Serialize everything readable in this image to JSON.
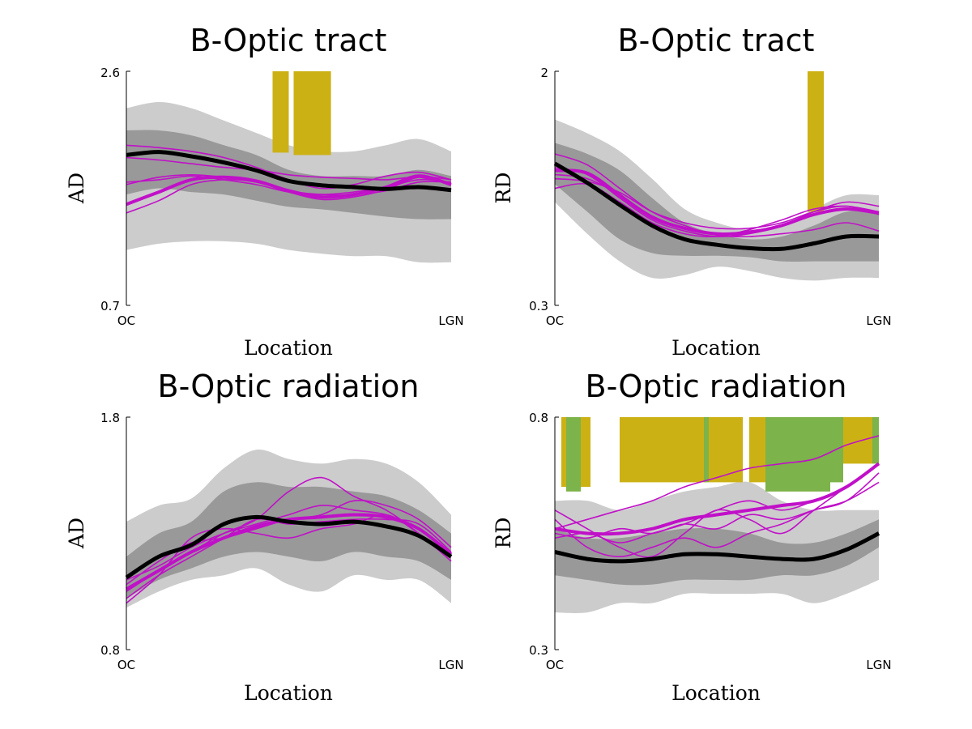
{
  "chart_data": [
    {
      "type": "line",
      "title": "B-Optic tract",
      "xlabel": "Location",
      "ylabel": "AD",
      "ylim": [
        0.7,
        2.6
      ],
      "y_tick_labels": [
        "0.7",
        "2.6"
      ],
      "x_tick_labels": [
        "OC",
        "LGN"
      ],
      "x": [
        0,
        10,
        20,
        30,
        40,
        50,
        60,
        70,
        80,
        90,
        100
      ],
      "band_outer": {
        "upper": [
          2.3,
          2.35,
          2.3,
          2.2,
          2.1,
          2.0,
          1.95,
          1.95,
          2.0,
          2.05,
          1.95
        ],
        "lower": [
          1.15,
          1.2,
          1.22,
          1.22,
          1.2,
          1.15,
          1.12,
          1.1,
          1.1,
          1.05,
          1.05
        ]
      },
      "band_inner": {
        "upper": [
          2.12,
          2.12,
          2.08,
          2.0,
          1.92,
          1.8,
          1.75,
          1.75,
          1.75,
          1.8,
          1.75
        ],
        "lower": [
          1.6,
          1.65,
          1.62,
          1.6,
          1.55,
          1.5,
          1.48,
          1.45,
          1.42,
          1.4,
          1.4
        ]
      },
      "series": [
        {
          "values": [
            1.9,
            1.88,
            1.85,
            1.82,
            1.8,
            1.76,
            1.74,
            1.73,
            1.72,
            1.74,
            1.68
          ]
        },
        {
          "values": [
            1.68,
            1.74,
            1.76,
            1.74,
            1.7,
            1.63,
            1.6,
            1.6,
            1.63,
            1.7,
            1.7
          ]
        },
        {
          "values": [
            1.7,
            1.72,
            1.75,
            1.72,
            1.68,
            1.62,
            1.6,
            1.62,
            1.66,
            1.72,
            1.7
          ]
        },
        {
          "values": [
            2.0,
            1.98,
            1.95,
            1.9,
            1.82,
            1.72,
            1.65,
            1.68,
            1.75,
            1.78,
            1.72
          ]
        },
        {
          "values": [
            1.45,
            1.55,
            1.68,
            1.72,
            1.7,
            1.62,
            1.56,
            1.58,
            1.64,
            1.74,
            1.72
          ]
        },
        {
          "values": [
            1.52,
            1.62,
            1.72,
            1.74,
            1.71,
            1.63,
            1.58,
            1.6,
            1.66,
            1.75,
            1.68
          ]
        }
      ],
      "significance": [
        {
          "x0": 45,
          "x1": 50,
          "y0": 1.94,
          "y1": 2.6,
          "color": "#ccb114"
        },
        {
          "x0": 51.5,
          "x1": 63,
          "y0": 1.92,
          "y1": 2.6,
          "color": "#ccb114"
        }
      ],
      "colors": {
        "band_outer": "#cccccc",
        "band_inner": "#999999",
        "mean": "#000000",
        "subject": "#c010c8",
        "sig_yellow": "#ccb114",
        "sig_green": "#7cb34a"
      }
    },
    {
      "type": "line",
      "title": "B-Optic tract",
      "xlabel": "Location",
      "ylabel": "RD",
      "ylim": [
        0.3,
        2
      ],
      "y_tick_labels": [
        "0.3",
        "2"
      ],
      "x_tick_labels": [
        "OC",
        "LGN"
      ],
      "x": [
        0,
        10,
        20,
        30,
        40,
        50,
        60,
        70,
        80,
        90,
        100
      ],
      "band_outer": {
        "upper": [
          1.65,
          1.55,
          1.42,
          1.22,
          1.0,
          0.9,
          0.85,
          0.88,
          1.0,
          1.1,
          1.1
        ],
        "lower": [
          1.05,
          0.82,
          0.62,
          0.5,
          0.52,
          0.58,
          0.55,
          0.5,
          0.48,
          0.5,
          0.5
        ]
      },
      "band_inner": {
        "upper": [
          1.48,
          1.4,
          1.28,
          1.08,
          0.9,
          0.82,
          0.78,
          0.8,
          0.88,
          0.98,
          0.98
        ],
        "lower": [
          1.18,
          0.98,
          0.78,
          0.68,
          0.66,
          0.66,
          0.65,
          0.62,
          0.62,
          0.62,
          0.62
        ]
      },
      "series": [
        {
          "values": [
            1.4,
            1.32,
            1.15,
            0.98,
            0.88,
            0.81,
            0.8,
            0.82,
            0.85,
            0.9,
            0.84
          ]
        },
        {
          "values": [
            1.25,
            1.22,
            1.1,
            0.95,
            0.86,
            0.82,
            0.84,
            0.88,
            0.96,
            1.0,
            0.98
          ]
        },
        {
          "values": [
            1.3,
            1.25,
            1.08,
            0.92,
            0.84,
            0.8,
            0.82,
            0.88,
            0.98,
            1.05,
            1.02
          ]
        },
        {
          "values": [
            1.22,
            1.2,
            1.12,
            0.98,
            0.9,
            0.86,
            0.86,
            0.9,
            0.98,
            1.02,
            0.96
          ]
        },
        {
          "values": [
            1.15,
            1.18,
            1.05,
            0.9,
            0.82,
            0.8,
            0.85,
            0.92,
            1.0,
            1.02,
            0.98
          ]
        },
        {
          "values": [
            1.28,
            1.26,
            1.1,
            0.94,
            0.86,
            0.82,
            0.83,
            0.88,
            0.96,
            1.0,
            0.97
          ]
        }
      ],
      "significance": [
        {
          "x0": 78,
          "x1": 83,
          "y0": 0.98,
          "y1": 2.0,
          "color": "#ccb114"
        }
      ],
      "colors": {
        "band_outer": "#cccccc",
        "band_inner": "#999999",
        "mean": "#000000",
        "subject": "#c010c8",
        "sig_yellow": "#ccb114",
        "sig_green": "#7cb34a"
      }
    },
    {
      "type": "line",
      "title": "B-Optic radiation",
      "xlabel": "Location",
      "ylabel": "AD",
      "ylim": [
        0.8,
        1.8
      ],
      "y_tick_labels": [
        "0.8",
        "1.8"
      ],
      "x_tick_labels": [
        "OC",
        "LGN"
      ],
      "x": [
        0,
        10,
        20,
        30,
        40,
        50,
        60,
        70,
        80,
        90,
        100
      ],
      "band_outer": {
        "upper": [
          1.35,
          1.42,
          1.45,
          1.58,
          1.66,
          1.62,
          1.6,
          1.62,
          1.6,
          1.52,
          1.38
        ],
        "lower": [
          0.98,
          1.05,
          1.1,
          1.12,
          1.15,
          1.08,
          1.05,
          1.12,
          1.1,
          1.1,
          1.0
        ]
      },
      "band_inner": {
        "upper": [
          1.2,
          1.3,
          1.35,
          1.48,
          1.52,
          1.5,
          1.5,
          1.48,
          1.46,
          1.4,
          1.3
        ]
      },
      "band_inner_lower": [
        1.02,
        1.1,
        1.15,
        1.2,
        1.22,
        1.2,
        1.18,
        1.22,
        1.2,
        1.18,
        1.1
      ],
      "series": [
        {
          "values": [
            1.02,
            1.12,
            1.2,
            1.28,
            1.36,
            1.34,
            1.35,
            1.36,
            1.36,
            1.34,
            1.22
          ]
        },
        {
          "values": [
            1.1,
            1.16,
            1.24,
            1.3,
            1.34,
            1.38,
            1.42,
            1.4,
            1.38,
            1.32,
            1.2
          ]
        },
        {
          "values": [
            1.05,
            1.14,
            1.22,
            1.3,
            1.36,
            1.48,
            1.54,
            1.46,
            1.4,
            1.3,
            1.18
          ]
        },
        {
          "values": [
            1.08,
            1.18,
            1.26,
            1.28,
            1.32,
            1.36,
            1.38,
            1.44,
            1.42,
            1.36,
            1.24
          ]
        },
        {
          "values": [
            1.0,
            1.12,
            1.28,
            1.32,
            1.3,
            1.28,
            1.32,
            1.34,
            1.38,
            1.3,
            1.2
          ]
        },
        {
          "values": [
            1.06,
            1.14,
            1.22,
            1.28,
            1.33,
            1.36,
            1.37,
            1.38,
            1.37,
            1.32,
            1.21
          ]
        }
      ],
      "significance": [],
      "colors": {
        "band_outer": "#cccccc",
        "band_inner": "#999999",
        "mean": "#000000",
        "subject": "#c010c8",
        "sig_yellow": "#ccb114",
        "sig_green": "#7cb34a"
      }
    },
    {
      "type": "line",
      "title": "B-Optic radiation",
      "xlabel": "Location",
      "ylabel": "RD",
      "ylim": [
        0.3,
        0.8
      ],
      "y_tick_labels": [
        "0.3",
        "0.8"
      ],
      "x_tick_labels": [
        "OC",
        "LGN"
      ],
      "x": [
        0,
        10,
        20,
        30,
        40,
        50,
        60,
        70,
        80,
        90,
        100
      ],
      "band_outer": {
        "upper": [
          0.62,
          0.62,
          0.6,
          0.62,
          0.64,
          0.65,
          0.66,
          0.62,
          0.6,
          0.6,
          0.6
        ],
        "lower": [
          0.38,
          0.38,
          0.4,
          0.4,
          0.42,
          0.42,
          0.42,
          0.42,
          0.4,
          0.42,
          0.45
        ]
      },
      "band_inner": {
        "upper": [
          0.56,
          0.54,
          0.54,
          0.55,
          0.56,
          0.56,
          0.55,
          0.53,
          0.53,
          0.55,
          0.58
        ]
      },
      "band_inner_lower": [
        0.46,
        0.45,
        0.44,
        0.44,
        0.45,
        0.45,
        0.45,
        0.46,
        0.46,
        0.48,
        0.52
      ],
      "series": [
        {
          "values": [
            0.55,
            0.54,
            0.56,
            0.55,
            0.57,
            0.56,
            0.59,
            0.58,
            0.6,
            0.62,
            0.68
          ]
        },
        {
          "values": [
            0.56,
            0.58,
            0.6,
            0.62,
            0.65,
            0.67,
            0.69,
            0.7,
            0.71,
            0.74,
            0.76
          ]
        },
        {
          "values": [
            0.54,
            0.55,
            0.53,
            0.55,
            0.57,
            0.6,
            0.62,
            0.6,
            0.62,
            0.65,
            0.7
          ]
        },
        {
          "values": [
            0.58,
            0.52,
            0.5,
            0.52,
            0.54,
            0.52,
            0.55,
            0.57,
            0.6,
            0.62,
            0.66
          ]
        },
        {
          "values": [
            0.6,
            0.56,
            0.52,
            0.5,
            0.55,
            0.6,
            0.58,
            0.55,
            0.6,
            0.65,
            0.7
          ]
        },
        {
          "values": [
            0.56,
            0.55,
            0.55,
            0.56,
            0.58,
            0.59,
            0.6,
            0.61,
            0.62,
            0.65,
            0.7
          ]
        }
      ],
      "significance": [
        {
          "x0": 2,
          "x1": 11,
          "y0": 0.65,
          "y1": 0.8,
          "color": "#ccb114"
        },
        {
          "x0": 3.5,
          "x1": 8,
          "y0": 0.64,
          "y1": 0.8,
          "color": "#7cb34a"
        },
        {
          "x0": 20,
          "x1": 47,
          "y0": 0.66,
          "y1": 0.8,
          "color": "#ccb114"
        },
        {
          "x0": 46,
          "x1": 47.5,
          "y0": 0.66,
          "y1": 0.8,
          "color": "#7cb34a"
        },
        {
          "x0": 47.5,
          "x1": 58,
          "y0": 0.66,
          "y1": 0.8,
          "color": "#ccb114"
        },
        {
          "x0": 60,
          "x1": 85,
          "y0": 0.66,
          "y1": 0.8,
          "color": "#ccb114"
        },
        {
          "x0": 65,
          "x1": 85,
          "y0": 0.64,
          "y1": 0.8,
          "color": "#7cb34a"
        },
        {
          "x0": 85,
          "x1": 89,
          "y0": 0.66,
          "y1": 0.8,
          "color": "#7cb34a"
        },
        {
          "x0": 89,
          "x1": 98,
          "y0": 0.7,
          "y1": 0.8,
          "color": "#ccb114"
        },
        {
          "x0": 98,
          "x1": 100,
          "y0": 0.7,
          "y1": 0.8,
          "color": "#7cb34a"
        }
      ],
      "colors": {
        "band_outer": "#cccccc",
        "band_inner": "#999999",
        "mean": "#000000",
        "subject": "#c010c8",
        "sig_yellow": "#ccb114",
        "sig_green": "#7cb34a"
      }
    }
  ]
}
